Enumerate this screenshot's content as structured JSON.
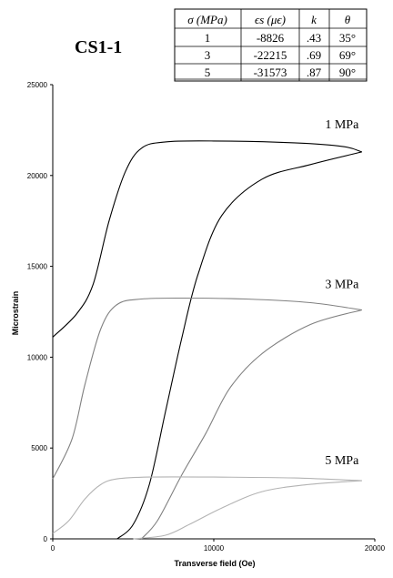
{
  "chart_data": {
    "type": "line",
    "title": "CS1-1",
    "xlabel": "Transverse field (Oe)",
    "ylabel": "Microstrain",
    "xlim": [
      0,
      20000
    ],
    "ylim": [
      0,
      25000
    ],
    "xticks": [
      "0",
      "10000",
      "20000"
    ],
    "yticks": [
      "0",
      "5000",
      "10000",
      "15000",
      "20000",
      "25000"
    ],
    "grid": false,
    "series": [
      {
        "name": "1 MPa",
        "color": "#000000",
        "values_up": [
          [
            0,
            11100
          ],
          [
            1500,
            12400
          ],
          [
            2500,
            14000
          ],
          [
            3500,
            17500
          ],
          [
            4500,
            20200
          ],
          [
            5500,
            21500
          ],
          [
            7000,
            21850
          ],
          [
            10000,
            21900
          ],
          [
            15000,
            21800
          ],
          [
            18000,
            21600
          ],
          [
            19200,
            21300
          ]
        ],
        "values_down": [
          [
            19200,
            21300
          ],
          [
            16000,
            20600
          ],
          [
            13000,
            19800
          ],
          [
            10500,
            17800
          ],
          [
            9000,
            14500
          ],
          [
            8000,
            11000
          ],
          [
            7000,
            7000
          ],
          [
            6000,
            3000
          ],
          [
            5000,
            800
          ],
          [
            4000,
            0
          ]
        ]
      },
      {
        "name": "3 MPa",
        "color": "#808080",
        "values_up": [
          [
            0,
            3300
          ],
          [
            1200,
            5500
          ],
          [
            2000,
            8500
          ],
          [
            3000,
            11600
          ],
          [
            4000,
            12900
          ],
          [
            5500,
            13200
          ],
          [
            8000,
            13250
          ],
          [
            12000,
            13200
          ],
          [
            16000,
            13000
          ],
          [
            19200,
            12600
          ]
        ],
        "values_down": [
          [
            19200,
            12600
          ],
          [
            16000,
            11800
          ],
          [
            13000,
            10200
          ],
          [
            11000,
            8300
          ],
          [
            9500,
            5800
          ],
          [
            8000,
            3500
          ],
          [
            6500,
            1000
          ],
          [
            5500,
            0
          ]
        ]
      },
      {
        "name": "5 MPa",
        "color": "#b3b3b3",
        "values_up": [
          [
            0,
            300
          ],
          [
            1000,
            1000
          ],
          [
            2000,
            2200
          ],
          [
            3000,
            3000
          ],
          [
            4000,
            3300
          ],
          [
            6000,
            3400
          ],
          [
            10000,
            3400
          ],
          [
            15000,
            3350
          ],
          [
            19200,
            3200
          ]
        ],
        "values_down": [
          [
            19200,
            3200
          ],
          [
            16000,
            3000
          ],
          [
            13000,
            2600
          ],
          [
            10500,
            1700
          ],
          [
            8500,
            800
          ],
          [
            7000,
            200
          ],
          [
            5000,
            0
          ]
        ]
      }
    ]
  },
  "table": {
    "headers": [
      "σ (MPa)",
      "ϵs (μϵ)",
      "k",
      "θ"
    ],
    "rows": [
      [
        "1",
        "-8826",
        ".43",
        "35°"
      ],
      [
        "3",
        "-22215",
        ".69",
        "69°"
      ],
      [
        "5",
        "-31573",
        ".87",
        "90°"
      ]
    ]
  }
}
